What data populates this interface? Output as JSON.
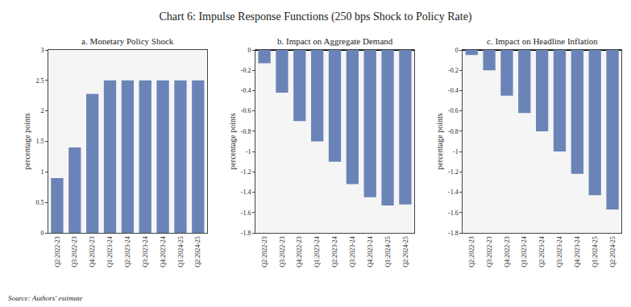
{
  "title": "Chart 6: Impulse Response Functions (250 bps Shock to Policy Rate)",
  "annotations": [
    "Source: Authors' estimate"
  ],
  "chart_data": [
    {
      "type": "bar",
      "title": "a. Monetary Policy Shock",
      "categories": [
        "Q2:2022-23",
        "Q3:2022-23",
        "Q4:2022-23",
        "Q1:2023-24",
        "Q2:2023-24",
        "Q3:2023-24",
        "Q4:2023-24",
        "Q1:2024-25",
        "Q2:2024-25"
      ],
      "values": [
        0.9,
        1.4,
        2.28,
        2.5,
        2.5,
        2.5,
        2.5,
        2.5,
        2.5
      ],
      "color": "#6b84b8",
      "ylabel": "percentage points",
      "ylim": [
        0,
        3
      ],
      "yticks": [
        0,
        0.5,
        1,
        1.5,
        2,
        2.5,
        3
      ],
      "grid": false
    },
    {
      "type": "bar",
      "title": "b. Impact on Aggregate Demand",
      "categories": [
        "Q2:2022-23",
        "Q3:2022-23",
        "Q4:2022-23",
        "Q1:2023-24",
        "Q2:2023-24",
        "Q3:2023-24",
        "Q4:2023-24",
        "Q1:2024-25",
        "Q2:2024-25"
      ],
      "values": [
        -0.13,
        -0.42,
        -0.7,
        -0.9,
        -1.1,
        -1.32,
        -1.45,
        -1.53,
        -1.52
      ],
      "color": "#6b84b8",
      "ylabel": "percentage points",
      "ylim": [
        -1.8,
        0
      ],
      "yticks": [
        0,
        -0.2,
        -0.4,
        -0.6,
        -0.8,
        -1,
        -1.2,
        -1.4,
        -1.6,
        -1.8
      ],
      "grid": false
    },
    {
      "type": "bar",
      "title": "c. Impact on Headline Inflation",
      "categories": [
        "Q2:2022-23",
        "Q3:2022-23",
        "Q4:2022-23",
        "Q1:2023-24",
        "Q2:2023-24",
        "Q3:2023-24",
        "Q4:2023-24",
        "Q1:2024-25",
        "Q2:2024-25"
      ],
      "values": [
        -0.05,
        -0.2,
        -0.45,
        -0.62,
        -0.8,
        -1.0,
        -1.22,
        -1.43,
        -1.57
      ],
      "color": "#6b84b8",
      "ylabel": "percentage points",
      "ylim": [
        -1.8,
        0
      ],
      "yticks": [
        0,
        -0.2,
        -0.4,
        -0.6,
        -0.8,
        -1,
        -1.2,
        -1.4,
        -1.6,
        -1.8
      ],
      "grid": false
    }
  ]
}
